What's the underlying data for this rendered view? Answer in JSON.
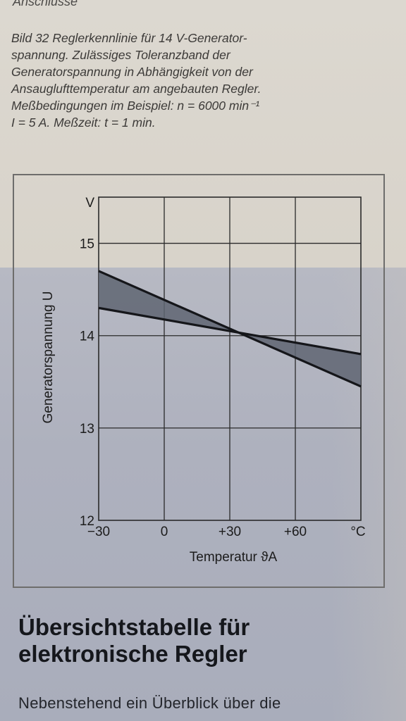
{
  "page": {
    "header_cut": "Anschlüsse",
    "caption": "Bild 32 Reglerkennlinie für 14 V-Generator-\nspannung. Zulässiges Toleranzband der\nGeneratorspannung in Abhängigkeit von der\nAnsauglufttemperatur am angebauten Regler.\nMeßbedingungen im Beispiel: n = 6000 min⁻¹\nI = 5 A. Meßzeit: t = 1 min.",
    "section_title": "Übersichtstabelle für\nelektronische Regler",
    "body_text": "Nebenstehend ein Überblick über die"
  },
  "chart_data": {
    "type": "area",
    "xlabel": "Temperatur ϑA",
    "ylabel": "Generatorspannung U",
    "x_unit": "°C",
    "y_unit": "V",
    "xlim": [
      -30,
      90
    ],
    "ylim": [
      12,
      15.5
    ],
    "x_ticks": [
      -30,
      0,
      30,
      60
    ],
    "x_tick_labels": [
      "−30",
      "0",
      "+30",
      "+60"
    ],
    "y_ticks": [
      12,
      13,
      14,
      15
    ],
    "y_tick_labels": [
      "12",
      "13",
      "14",
      "15"
    ],
    "grid": true,
    "series": [
      {
        "x": [
          -30,
          90
        ],
        "values": [
          14.7,
          13.45
        ]
      },
      {
        "x": [
          -30,
          90
        ],
        "values": [
          14.3,
          13.8
        ]
      }
    ],
    "colors": {
      "band": "#5f6572",
      "line": "#15161a",
      "grid": "#2a2a2a"
    }
  }
}
